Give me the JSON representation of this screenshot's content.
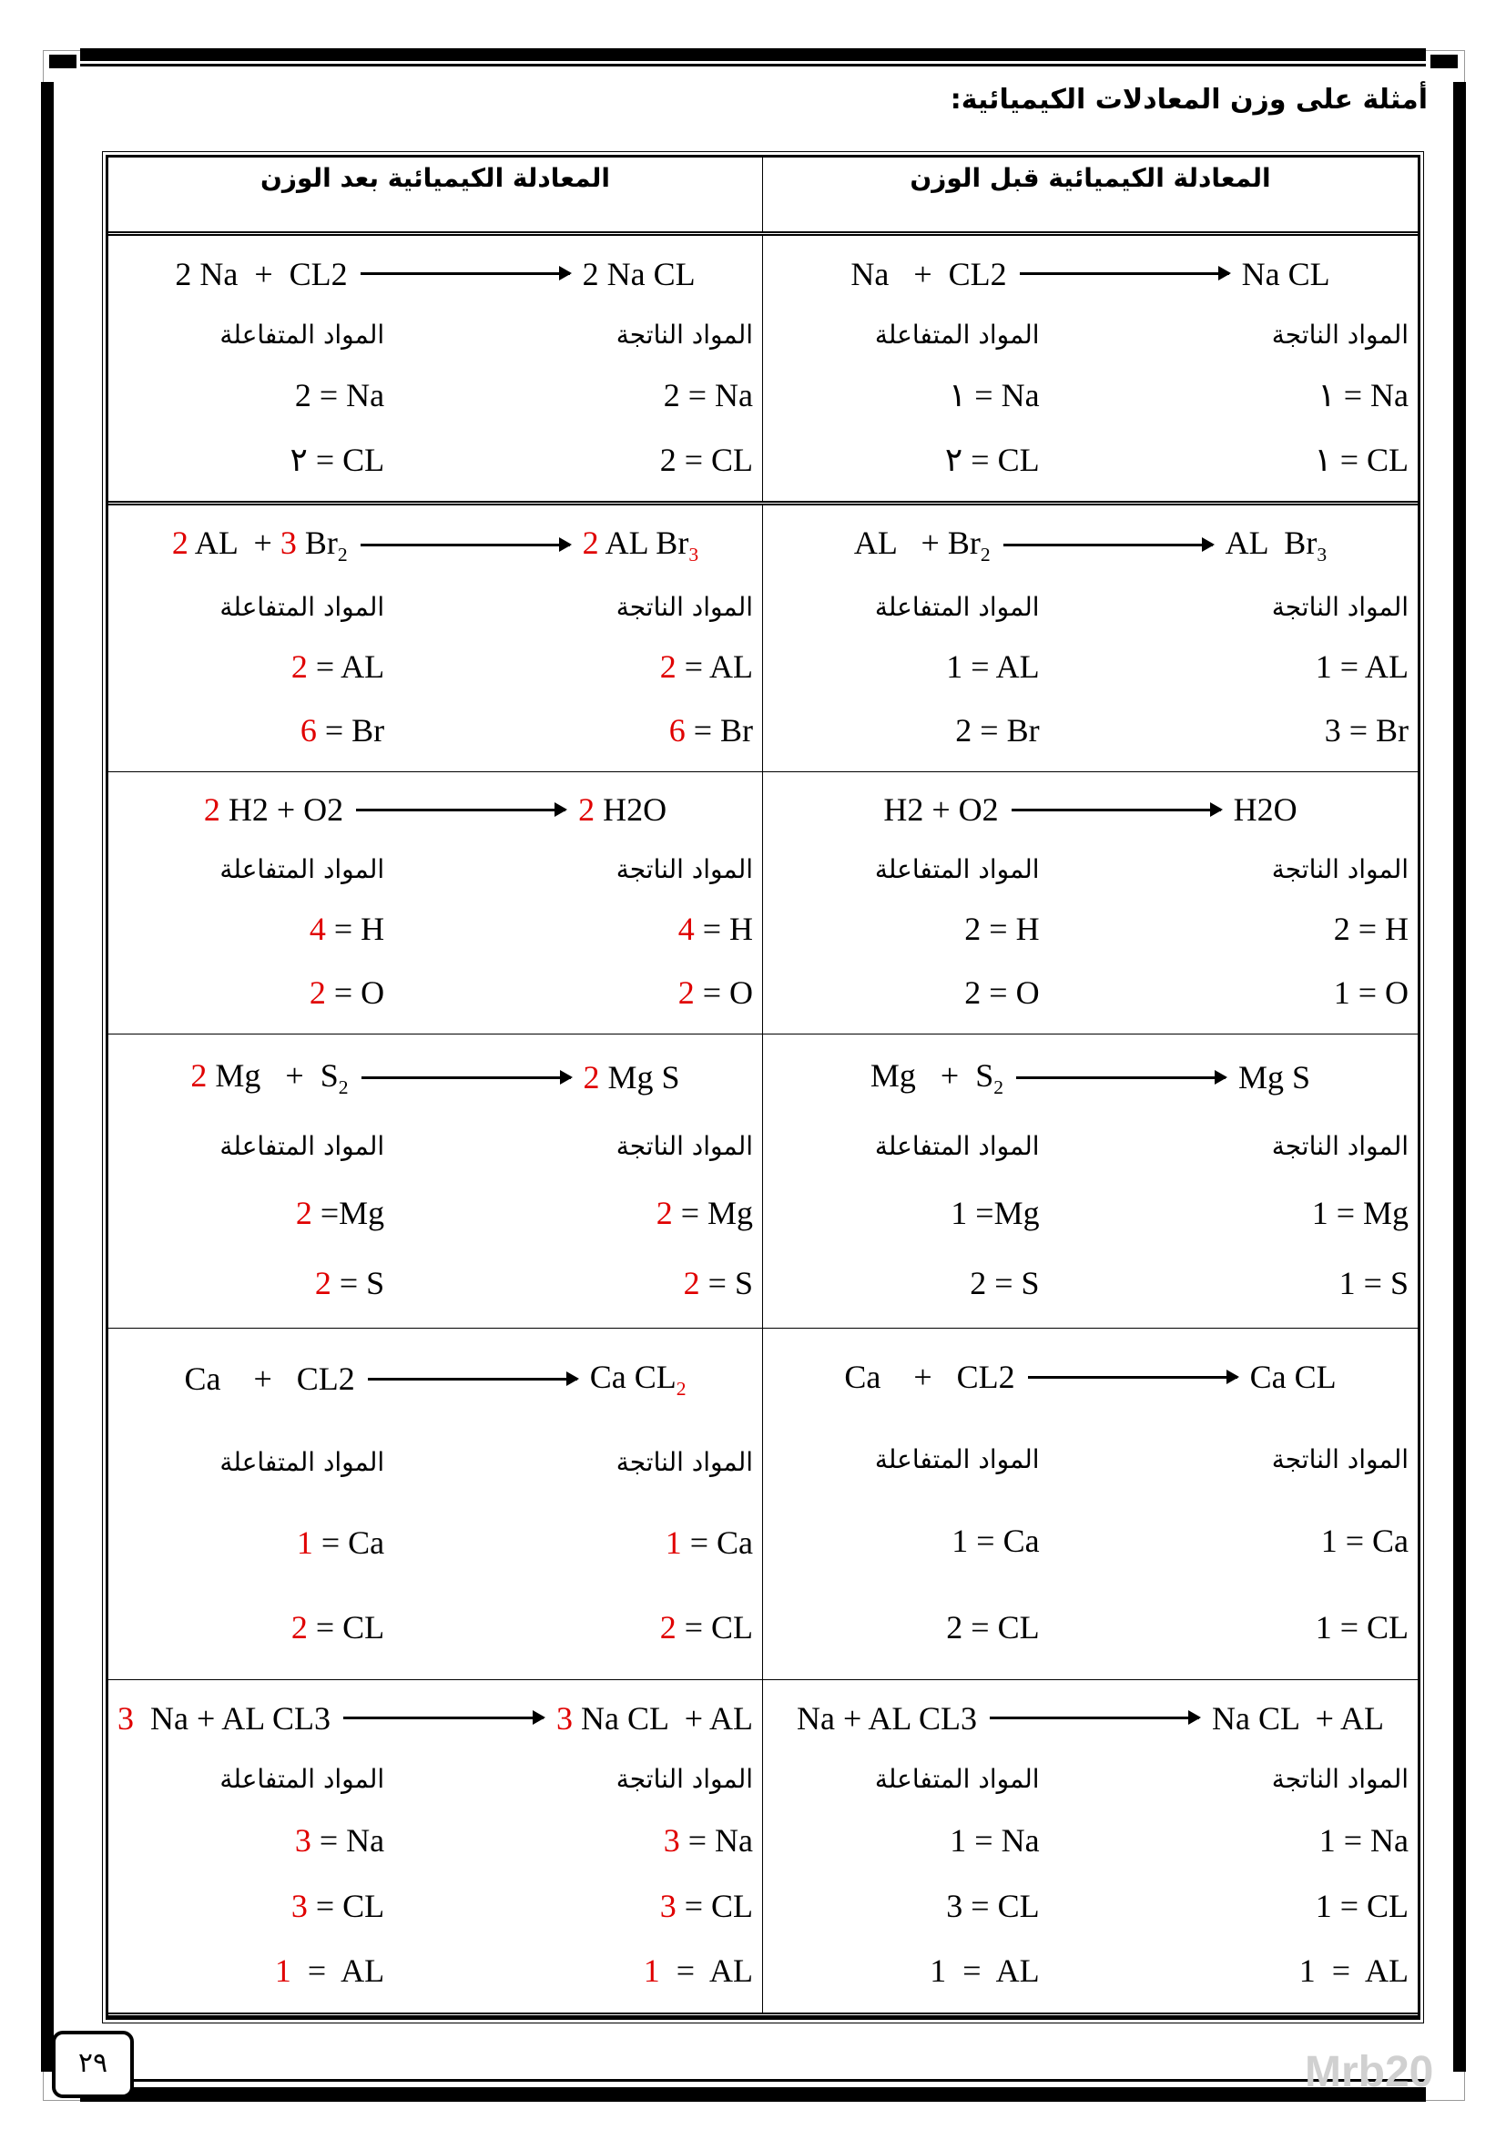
{
  "title": "أمثلة على وزن المعادلات الكيميائية:",
  "headers": {
    "after": "المعادلة الكيميائية بعد الوزن",
    "before": "المعادلة الكيميائية قبل الوزن"
  },
  "labels": {
    "reactants": "المواد المتفاعلة",
    "products": "المواد الناتجة"
  },
  "accent_color": "#e00000",
  "rows": [
    {
      "after": {
        "reactants": [
          {
            "t": "2 Na  +  CL2"
          }
        ],
        "products": [
          {
            "t": "2 Na CL"
          }
        ],
        "left": [
          [
            {
              "t": "2 = Na"
            }
          ],
          [
            {
              "t": "٢ = CL"
            }
          ]
        ],
        "right": [
          [
            {
              "t": "2 = Na"
            }
          ],
          [
            {
              "t": "2 = CL"
            }
          ]
        ]
      },
      "before": {
        "reactants": [
          {
            "t": "Na   +  CL2"
          }
        ],
        "products": [
          {
            "t": "Na CL"
          }
        ],
        "left": [
          [
            {
              "t": "١ = Na"
            }
          ],
          [
            {
              "t": "٢ = CL"
            }
          ]
        ],
        "right": [
          [
            {
              "t": "١ = Na"
            }
          ],
          [
            {
              "t": "١ = CL"
            }
          ]
        ]
      }
    },
    {
      "after": {
        "reactants": [
          {
            "t": "2",
            "red": true
          },
          {
            "t": " AL  + "
          },
          {
            "t": "3",
            "red": true
          },
          {
            "t": " Br"
          },
          {
            "t": "2",
            "sub": true
          }
        ],
        "products": [
          {
            "t": "2",
            "red": true
          },
          {
            "t": " AL Br"
          },
          {
            "t": "3",
            "sub": true,
            "red": true
          }
        ],
        "left": [
          [
            {
              "t": "2",
              "red": true
            },
            {
              "t": " = AL"
            }
          ],
          [
            {
              "t": "6",
              "red": true
            },
            {
              "t": " = Br"
            }
          ]
        ],
        "right": [
          [
            {
              "t": "2",
              "red": true
            },
            {
              "t": " = AL"
            }
          ],
          [
            {
              "t": "6",
              "red": true
            },
            {
              "t": " = Br"
            }
          ]
        ]
      },
      "before": {
        "reactants": [
          {
            "t": "AL   + Br"
          },
          {
            "t": "2",
            "sub": true
          }
        ],
        "products": [
          {
            "t": "AL  Br"
          },
          {
            "t": "3",
            "sub": true
          }
        ],
        "left": [
          [
            {
              "t": "1 = AL"
            }
          ],
          [
            {
              "t": "2 = Br"
            }
          ]
        ],
        "right": [
          [
            {
              "t": "1 = AL"
            }
          ],
          [
            {
              "t": "3 = Br"
            }
          ]
        ]
      }
    },
    {
      "after": {
        "reactants": [
          {
            "t": "2",
            "red": true
          },
          {
            "t": " H2 + O2"
          }
        ],
        "products": [
          {
            "t": "2",
            "red": true
          },
          {
            "t": " H2O"
          }
        ],
        "left": [
          [
            {
              "t": "4",
              "red": true
            },
            {
              "t": " = H"
            }
          ],
          [
            {
              "t": "2",
              "red": true
            },
            {
              "t": " = O"
            }
          ]
        ],
        "right": [
          [
            {
              "t": "4",
              "red": true
            },
            {
              "t": " = H"
            }
          ],
          [
            {
              "t": "2",
              "red": true
            },
            {
              "t": " = O"
            }
          ]
        ]
      },
      "before": {
        "reactants": [
          {
            "t": "H2 + O2"
          }
        ],
        "products": [
          {
            "t": "H2O"
          }
        ],
        "left": [
          [
            {
              "t": "2 = H"
            }
          ],
          [
            {
              "t": "2 = O"
            }
          ]
        ],
        "right": [
          [
            {
              "t": "2 = H"
            }
          ],
          [
            {
              "t": "1 = O"
            }
          ]
        ]
      }
    },
    {
      "after": {
        "reactants": [
          {
            "t": "2",
            "red": true
          },
          {
            "t": " Mg   +  S"
          },
          {
            "t": "2",
            "sub": true
          }
        ],
        "products": [
          {
            "t": "2",
            "red": true
          },
          {
            "t": " Mg S"
          }
        ],
        "left": [
          [
            {
              "t": "2",
              "red": true
            },
            {
              "t": " =Mg"
            }
          ],
          [
            {
              "t": "2",
              "red": true
            },
            {
              "t": " = S"
            }
          ]
        ],
        "right": [
          [
            {
              "t": "2",
              "red": true
            },
            {
              "t": " = Mg"
            }
          ],
          [
            {
              "t": "2",
              "red": true
            },
            {
              "t": " = S"
            }
          ]
        ]
      },
      "before": {
        "reactants": [
          {
            "t": "Mg   +  S"
          },
          {
            "t": "2",
            "sub": true
          }
        ],
        "products": [
          {
            "t": "Mg S"
          }
        ],
        "left": [
          [
            {
              "t": "1 =Mg"
            }
          ],
          [
            {
              "t": "2 = S"
            }
          ]
        ],
        "right": [
          [
            {
              "t": "1 = Mg"
            }
          ],
          [
            {
              "t": "1 = S"
            }
          ]
        ]
      }
    },
    {
      "after": {
        "reactants": [
          {
            "t": "Ca    +   CL2"
          }
        ],
        "products": [
          {
            "t": "Ca CL"
          },
          {
            "t": "2",
            "sub": true,
            "red": true
          }
        ],
        "left": [
          [
            {
              "t": "1",
              "red": true
            },
            {
              "t": " = Ca"
            }
          ],
          [
            {
              "t": "2",
              "red": true
            },
            {
              "t": " = CL"
            }
          ]
        ],
        "right": [
          [
            {
              "t": "1",
              "red": true
            },
            {
              "t": " = Ca"
            }
          ],
          [
            {
              "t": "2",
              "red": true
            },
            {
              "t": " = CL"
            }
          ]
        ]
      },
      "before": {
        "reactants": [
          {
            "t": "Ca    +   CL2"
          }
        ],
        "products": [
          {
            "t": "Ca CL"
          }
        ],
        "left": [
          [
            {
              "t": "1 = Ca"
            }
          ],
          [
            {
              "t": "2 = CL"
            }
          ]
        ],
        "right": [
          [
            {
              "t": "1 = Ca"
            }
          ],
          [
            {
              "t": "1 = CL"
            }
          ]
        ]
      }
    },
    {
      "after": {
        "reactants": [
          {
            "t": "3",
            "red": true
          },
          {
            "t": "  Na + AL CL3"
          }
        ],
        "products": [
          {
            "t": "3",
            "red": true
          },
          {
            "t": " Na CL  + AL"
          }
        ],
        "left": [
          [
            {
              "t": "3",
              "red": true
            },
            {
              "t": " = Na"
            }
          ],
          [
            {
              "t": "3",
              "red": true
            },
            {
              "t": " = CL"
            }
          ],
          [
            {
              "t": "1",
              "red": true
            },
            {
              "t": "  =  AL"
            }
          ]
        ],
        "right": [
          [
            {
              "t": "3",
              "red": true
            },
            {
              "t": " = Na"
            }
          ],
          [
            {
              "t": "3",
              "red": true
            },
            {
              "t": " = CL"
            }
          ],
          [
            {
              "t": "1",
              "red": true
            },
            {
              "t": "  =  AL"
            }
          ]
        ]
      },
      "before": {
        "reactants": [
          {
            "t": "Na + AL CL3"
          }
        ],
        "products": [
          {
            "t": "Na CL  + AL"
          }
        ],
        "left": [
          [
            {
              "t": "1 = Na"
            }
          ],
          [
            {
              "t": "3 = CL"
            }
          ],
          [
            {
              "t": "1  =  AL"
            }
          ]
        ],
        "right": [
          [
            {
              "t": "1 = Na"
            }
          ],
          [
            {
              "t": "1 = CL"
            }
          ],
          [
            {
              "t": "1  =  AL"
            }
          ]
        ]
      }
    }
  ],
  "page_number": "٢٩",
  "watermark": "Mrb20"
}
